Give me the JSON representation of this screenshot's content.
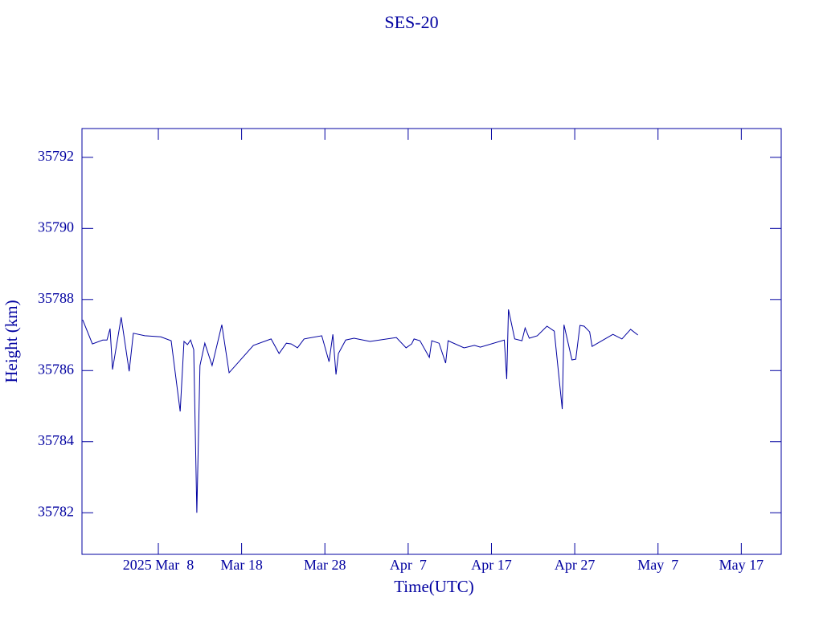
{
  "chart_data": {
    "type": "line",
    "title": "SES-20",
    "x_label": "Time(UTC)",
    "y_label": "Height (km)",
    "color": "#0000a0",
    "xlim": [
      "2025-02-26T20:00",
      "2025-05-21T19:00"
    ],
    "ylim": [
      35780.83,
      35792.81
    ],
    "xticks": [
      {
        "value": "2025-03-08T00:00",
        "label": "2025 Mar  8"
      },
      {
        "value": "2025-03-18T00:00",
        "label": "Mar 18"
      },
      {
        "value": "2025-03-28T00:00",
        "label": "Mar 28"
      },
      {
        "value": "2025-04-07T00:00",
        "label": "Apr  7"
      },
      {
        "value": "2025-04-17T00:00",
        "label": "Apr 17"
      },
      {
        "value": "2025-04-27T00:00",
        "label": "Apr 27"
      },
      {
        "value": "2025-05-07T00:00",
        "label": "May  7"
      },
      {
        "value": "2025-05-17T00:00",
        "label": "May 17"
      }
    ],
    "yticks": [
      35782,
      35784,
      35786,
      35788,
      35790,
      35792
    ],
    "x": [
      "2025-02-26T22:00",
      "2025-02-28T02:00",
      "2025-03-01T08:00",
      "2025-03-01T20:00",
      "2025-03-02T05:00",
      "2025-03-02T12:00",
      "2025-03-03T13:00",
      "2025-03-04T12:00",
      "2025-03-05T00:00",
      "2025-03-06T09:00",
      "2025-03-08T07:00",
      "2025-03-09T13:00",
      "2025-03-10T15:00",
      "2025-03-11T02:00",
      "2025-03-11T12:00",
      "2025-03-11T21:00",
      "2025-03-12T06:00",
      "2025-03-12T15:00",
      "2025-03-13T00:00",
      "2025-03-13T14:00",
      "2025-03-14T11:00",
      "2025-03-15T15:00",
      "2025-03-16T12:00",
      "2025-03-19T10:00",
      "2025-03-21T13:00",
      "2025-03-22T12:00",
      "2025-03-23T09:00",
      "2025-03-23T23:00",
      "2025-03-24T17:00",
      "2025-03-25T12:00",
      "2025-03-27T15:00",
      "2025-03-28T12:00",
      "2025-03-28T23:00",
      "2025-03-29T08:00",
      "2025-03-29T15:00",
      "2025-03-30T12:00",
      "2025-03-31T12:00",
      "2025-04-02T10:00",
      "2025-04-05T14:00",
      "2025-04-06T18:00",
      "2025-04-07T10:00",
      "2025-04-07T17:00",
      "2025-04-08T10:00",
      "2025-04-09T13:00",
      "2025-04-09T20:00",
      "2025-04-10T17:00",
      "2025-04-11T12:00",
      "2025-04-11T19:00",
      "2025-04-13T17:00",
      "2025-04-14T23:00",
      "2025-04-15T16:00",
      "2025-04-18T13:00",
      "2025-04-18T20:00",
      "2025-04-19T01:00",
      "2025-04-19T19:00",
      "2025-04-20T16:00",
      "2025-04-21T01:00",
      "2025-04-21T13:00",
      "2025-04-22T12:00",
      "2025-04-23T16:00",
      "2025-04-24T13:00",
      "2025-04-25T12:00",
      "2025-04-25T17:00",
      "2025-04-26T16:00",
      "2025-04-27T03:00",
      "2025-04-27T15:00",
      "2025-04-28T03:00",
      "2025-04-28T19:00",
      "2025-04-29T02:00",
      "2025-05-01T14:00",
      "2025-05-02T16:00",
      "2025-05-03T17:00",
      "2025-05-04T14:00"
    ],
    "values": [
      35787.43,
      35786.75,
      35786.86,
      35786.86,
      35787.18,
      35786.03,
      35787.5,
      35785.98,
      35787.05,
      35786.98,
      35786.95,
      35786.84,
      35784.85,
      35786.82,
      35786.73,
      35786.86,
      35786.59,
      35782.0,
      35786.14,
      35786.77,
      35786.14,
      35787.29,
      35785.94,
      35786.71,
      35786.89,
      35786.48,
      35786.77,
      35786.75,
      35786.64,
      35786.89,
      35786.98,
      35786.25,
      35787.02,
      35785.89,
      35786.48,
      35786.86,
      35786.91,
      35786.82,
      35786.93,
      35786.64,
      35786.75,
      35786.89,
      35786.84,
      35786.37,
      35786.84,
      35786.77,
      35786.21,
      35786.84,
      35786.64,
      35786.71,
      35786.66,
      35786.86,
      35785.76,
      35787.72,
      35786.89,
      35786.84,
      35787.2,
      35786.91,
      35786.98,
      35787.25,
      35787.11,
      35784.92,
      35787.29,
      35786.3,
      35786.32,
      35787.27,
      35787.25,
      35787.09,
      35786.68,
      35787.02,
      35786.89,
      35787.16,
      35787.0
    ]
  }
}
